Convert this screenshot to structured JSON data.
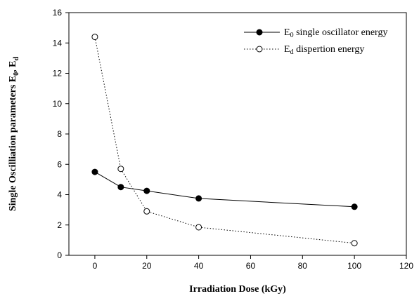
{
  "chart_data": {
    "type": "line",
    "title": "",
    "xlabel": "Irradiation Dose (kGy)",
    "ylabel": {
      "base": "Single Oscilliation parameters E",
      "sub1": "0",
      "mid": ", E",
      "sub2": "d"
    },
    "x": [
      0,
      10,
      20,
      40,
      100
    ],
    "xlim": [
      -10,
      120
    ],
    "ylim": [
      0,
      16
    ],
    "xticks": [
      0,
      20,
      40,
      60,
      80,
      100,
      120
    ],
    "yticks": [
      0,
      2,
      4,
      6,
      8,
      10,
      12,
      14,
      16
    ],
    "grid": false,
    "legend_position": "top-right",
    "series": [
      {
        "name": "E0 single oscillator energy",
        "legend_prefix": "E",
        "legend_sub": "0",
        "legend_rest": " single oscillator energy",
        "marker": "filled-circle",
        "line": "solid",
        "color": "#000000",
        "values": [
          5.5,
          4.5,
          4.25,
          3.75,
          3.2
        ]
      },
      {
        "name": "Ed dispertion energy",
        "legend_prefix": "E",
        "legend_sub": "d",
        "legend_rest": " dispertion energy",
        "marker": "open-circle",
        "line": "dotted",
        "color": "#000000",
        "values": [
          14.4,
          5.7,
          2.9,
          1.85,
          0.8
        ]
      }
    ]
  }
}
